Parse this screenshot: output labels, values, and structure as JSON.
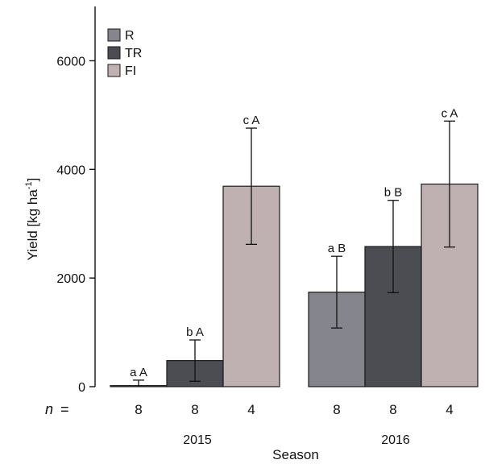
{
  "chart_data": {
    "type": "bar",
    "ylabel": "Yield [kg ha",
    "ylabel_sup": "-1",
    "ylabel_close": "]",
    "xlabel": "Season",
    "ylim": [
      0,
      7000
    ],
    "yticks": [
      0,
      2000,
      4000,
      6000
    ],
    "categories": [
      "2015",
      "2016"
    ],
    "series": [
      {
        "name": "R",
        "color": "#84858d",
        "values": [
          20,
          1740
        ],
        "errors": [
          100,
          660
        ],
        "labels": [
          "a A",
          "a B"
        ],
        "n": [
          "8",
          "8"
        ]
      },
      {
        "name": "TR",
        "color": "#4c4c53",
        "values": [
          480,
          2580
        ],
        "errors": [
          380,
          850
        ],
        "labels": [
          "b A",
          "b B"
        ],
        "n": [
          "8",
          "8"
        ]
      },
      {
        "name": "FI",
        "color": "#bfb1b2",
        "values": [
          3690,
          3730
        ],
        "errors": [
          1070,
          1160
        ],
        "labels": [
          "c A",
          "c A"
        ],
        "n": [
          "4",
          "4"
        ]
      }
    ],
    "n_label": "n",
    "n_equals": "=",
    "legend_position": "top-left",
    "grid": false
  }
}
